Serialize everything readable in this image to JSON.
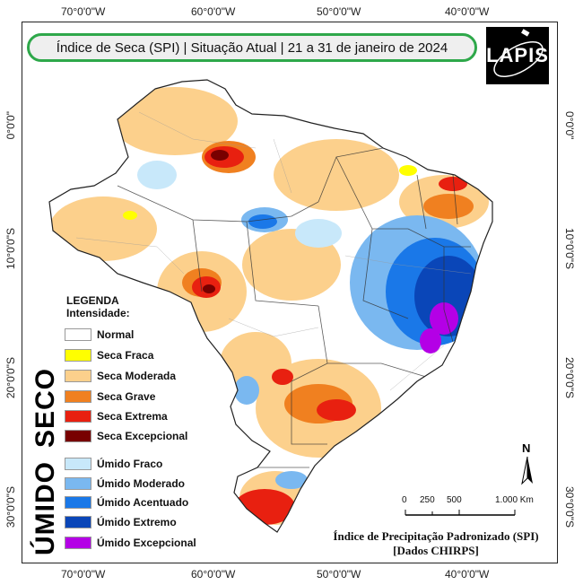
{
  "title": "Índice de Seca (SPI) | Situação Atual | 21 a 31 de janeiro de 2024",
  "logo": {
    "text": "LAPIS",
    "icon": "satellite-orbit-icon"
  },
  "coords": {
    "top": [
      "70°0'0\"W",
      "60°0'0\"W",
      "50°0'0\"W",
      "40°0'0\"W"
    ],
    "bottom": [
      "70°0'0\"W",
      "60°0'0\"W",
      "50°0'0\"W",
      "40°0'0\"W"
    ],
    "left": [
      "0°0'0\"",
      "10°0'0\"S",
      "20°0'0\"S",
      "30°0'0\"S"
    ],
    "right": [
      "0°0'0\"",
      "10°0'0\"S",
      "20°0'0\"S",
      "30°0'0\"S"
    ]
  },
  "legend": {
    "title": "LEGENDA",
    "subtitle": "Intensidade:",
    "items": [
      {
        "label": "Normal",
        "color": "#ffffff"
      },
      {
        "label": "Seca Fraca",
        "color": "#ffff00"
      },
      {
        "label": "Seca Moderada",
        "color": "#fcd08c"
      },
      {
        "label": "Seca Grave",
        "color": "#f08020"
      },
      {
        "label": "Seca Extrema",
        "color": "#e82010"
      },
      {
        "label": "Seca Excepcional",
        "color": "#780000"
      },
      {
        "label": "Úmido Fraco",
        "color": "#c8e8fa"
      },
      {
        "label": "Úmido Moderado",
        "color": "#7ab8f0"
      },
      {
        "label": "Úmido Acentuado",
        "color": "#1a78e8"
      },
      {
        "label": "Úmido Extremo",
        "color": "#0a46b8"
      },
      {
        "label": "Úmido Excepcional",
        "color": "#b400e6"
      }
    ]
  },
  "side_labels": {
    "dry": "SECO",
    "wet": "ÚMIDO"
  },
  "north": "N",
  "scale": {
    "ticks": [
      "0",
      "250",
      "500",
      "1.000 Km"
    ]
  },
  "source": {
    "line1": "Índice de Precipitação Padronizado (SPI)",
    "line2": "[Dados CHIRPS]"
  }
}
